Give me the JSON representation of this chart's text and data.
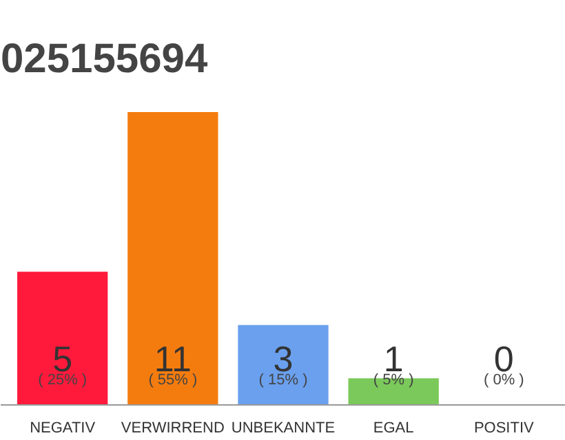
{
  "chart_data": {
    "type": "bar",
    "title": "025155694",
    "categories": [
      "NEGATIV",
      "VERWIRREND",
      "UNBEKANNTE",
      "EGAL",
      "POSITIV"
    ],
    "values": [
      5,
      11,
      3,
      1,
      0
    ],
    "colors": [
      "#ff1a3c",
      "#f47c0e",
      "#6aa0ee",
      "#7ac95a",
      "#cccccc"
    ],
    "ylim": [
      0,
      11
    ],
    "data_labels": true,
    "grid": false,
    "tick_labels": "x",
    "annotations": [
      "( 25% )",
      "( 55% )",
      "( 15% )",
      "( 5% )",
      "( 0% )"
    ]
  }
}
